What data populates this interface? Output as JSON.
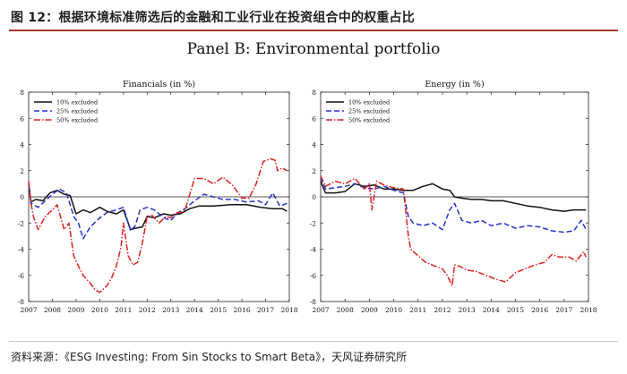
{
  "figure": {
    "title": "图 12：根据环境标准筛选后的金融和工业行业在投资组合中的权重占比",
    "panel_title": "Panel B: Environmental portfolio",
    "source": "资料来源：《ESG Investing: From Sin Stocks to Smart Beta》，天风证券研究所"
  },
  "colors": {
    "s10": "#111111",
    "s25": "#2233cc",
    "s50": "#dd2222",
    "accent": "#a63a2c"
  },
  "chart_data": [
    {
      "type": "line",
      "title": "Financials (in %)",
      "xlabel": "",
      "ylabel": "",
      "xlim": [
        2007,
        2018
      ],
      "ylim": [
        -8,
        8
      ],
      "xticks": [
        "2007",
        "2008",
        "2009",
        "2010",
        "2011",
        "2012",
        "2013",
        "2014",
        "2015",
        "2016",
        "2017",
        "2018"
      ],
      "yticks": [
        "-8",
        "-6",
        "-4",
        "-2",
        "0",
        "2",
        "4",
        "6",
        "8"
      ],
      "legend": "top-left",
      "series": [
        {
          "name": "10% excluded",
          "style": "solid",
          "x": [
            2007,
            2007.1,
            2007.3,
            2007.6,
            2007.9,
            2008.2,
            2008.5,
            2008.75,
            2009.0,
            2009.3,
            2009.6,
            2010.0,
            2010.3,
            2010.7,
            2011.0,
            2011.3,
            2011.5,
            2011.8,
            2012.0,
            2012.3,
            2012.7,
            2013.0,
            2013.4,
            2013.8,
            2014.2,
            2014.8,
            2015.5,
            2016.2,
            2016.8,
            2017.3,
            2017.7,
            2017.9
          ],
          "y": [
            1.0,
            -0.4,
            -0.2,
            -0.3,
            0.3,
            0.5,
            0.2,
            0.1,
            -1.3,
            -1.0,
            -1.2,
            -0.8,
            -1.1,
            -1.3,
            -1.0,
            -2.5,
            -2.4,
            -2.3,
            -1.5,
            -1.6,
            -1.3,
            -1.4,
            -1.3,
            -0.9,
            -0.7,
            -0.7,
            -0.6,
            -0.6,
            -0.8,
            -0.9,
            -0.9,
            -1.1
          ]
        },
        {
          "name": "25% excluded",
          "style": "dashed",
          "x": [
            2007,
            2007.1,
            2007.4,
            2007.7,
            2008.0,
            2008.3,
            2008.6,
            2008.9,
            2009.1,
            2009.3,
            2009.6,
            2010.0,
            2010.3,
            2010.7,
            2011.0,
            2011.3,
            2011.5,
            2011.7,
            2012.0,
            2012.3,
            2012.7,
            2013.0,
            2013.3,
            2013.6,
            2014.0,
            2014.4,
            2014.8,
            2015.2,
            2015.7,
            2016.2,
            2016.7,
            2017.0,
            2017.3,
            2017.6,
            2017.9
          ],
          "y": [
            1.0,
            -0.5,
            -0.8,
            -0.3,
            0.2,
            0.6,
            0.3,
            -1.5,
            -2.0,
            -3.2,
            -2.3,
            -1.6,
            -1.2,
            -1.0,
            -0.8,
            -2.6,
            -2.2,
            -1.0,
            -0.8,
            -1.0,
            -1.6,
            -1.8,
            -1.2,
            -0.9,
            -0.3,
            0.2,
            0.0,
            -0.2,
            -0.2,
            -0.4,
            -0.3,
            -0.6,
            0.3,
            -0.7,
            -0.5
          ]
        },
        {
          "name": "50% excluded",
          "style": "dashdot",
          "x": [
            2007,
            2007.1,
            2007.2,
            2007.4,
            2007.7,
            2008.0,
            2008.2,
            2008.5,
            2008.7,
            2008.9,
            2009.1,
            2009.3,
            2009.6,
            2009.8,
            2010.0,
            2010.3,
            2010.5,
            2010.7,
            2010.9,
            2011.0,
            2011.2,
            2011.4,
            2011.6,
            2011.8,
            2012.0,
            2012.2,
            2012.5,
            2012.8,
            2013.0,
            2013.2,
            2013.4,
            2013.6,
            2014.0,
            2014.4,
            2014.8,
            2015.2,
            2015.6,
            2016.0,
            2016.3,
            2016.6,
            2016.9,
            2017.2,
            2017.4,
            2017.5,
            2017.7,
            2017.9
          ],
          "y": [
            1.2,
            -0.5,
            -1.5,
            -2.5,
            -1.5,
            -1.0,
            -0.6,
            -2.5,
            -2.0,
            -4.5,
            -5.3,
            -6.0,
            -6.6,
            -7.1,
            -7.3,
            -6.8,
            -6.2,
            -5.3,
            -3.8,
            -2.0,
            -4.5,
            -5.2,
            -5.0,
            -3.5,
            -1.5,
            -1.4,
            -2.0,
            -1.5,
            -1.6,
            -1.2,
            -1.2,
            -1.0,
            1.4,
            1.4,
            1.0,
            1.5,
            0.9,
            -0.1,
            -0.1,
            1.0,
            2.7,
            2.9,
            2.8,
            2.0,
            2.2,
            2.0
          ]
        }
      ]
    },
    {
      "type": "line",
      "title": "Energy (in %)",
      "xlabel": "",
      "ylabel": "",
      "xlim": [
        2007,
        2018
      ],
      "ylim": [
        -8,
        8
      ],
      "xticks": [
        "2007",
        "2008",
        "2009",
        "2010",
        "2011",
        "2012",
        "2013",
        "2014",
        "2015",
        "2016",
        "2017",
        "2018"
      ],
      "yticks": [
        "-8",
        "-6",
        "-4",
        "-2",
        "0",
        "2",
        "4",
        "6",
        "8"
      ],
      "legend": "top-left",
      "series": [
        {
          "name": "10% excluded",
          "style": "solid",
          "x": [
            2007,
            2007.2,
            2007.6,
            2008.0,
            2008.4,
            2008.8,
            2009.2,
            2009.6,
            2010.0,
            2010.4,
            2010.8,
            2011.2,
            2011.6,
            2012.0,
            2012.3,
            2012.5,
            2012.8,
            2013.2,
            2013.6,
            2014.0,
            2014.5,
            2015.0,
            2015.5,
            2016.0,
            2016.5,
            2017.0,
            2017.4,
            2017.9
          ],
          "y": [
            1.2,
            0.3,
            0.3,
            0.4,
            1.0,
            0.8,
            0.9,
            0.6,
            0.6,
            0.5,
            0.5,
            0.8,
            1.0,
            0.6,
            0.5,
            0.0,
            -0.1,
            -0.2,
            -0.2,
            -0.3,
            -0.3,
            -0.5,
            -0.7,
            -0.8,
            -1.0,
            -1.1,
            -1.0,
            -1.0
          ]
        },
        {
          "name": "25% excluded",
          "style": "dashed",
          "x": [
            2007,
            2007.2,
            2007.6,
            2008.0,
            2008.4,
            2008.8,
            2009.2,
            2009.6,
            2010.0,
            2010.4,
            2010.6,
            2010.8,
            2011.2,
            2011.6,
            2012.0,
            2012.3,
            2012.5,
            2012.8,
            2013.2,
            2013.6,
            2014.0,
            2014.5,
            2015.0,
            2015.5,
            2016.0,
            2016.5,
            2017.0,
            2017.4,
            2017.7,
            2017.9
          ],
          "y": [
            1.5,
            0.6,
            0.7,
            0.8,
            1.0,
            0.7,
            0.6,
            0.8,
            0.5,
            0.3,
            -1.5,
            -2.0,
            -2.2,
            -2.0,
            -2.5,
            -1.0,
            -0.5,
            -1.8,
            -2.0,
            -1.8,
            -2.2,
            -2.0,
            -2.4,
            -2.2,
            -2.3,
            -2.6,
            -2.7,
            -2.6,
            -1.8,
            -2.5
          ]
        },
        {
          "name": "50% excluded",
          "style": "dashdot",
          "x": [
            2007,
            2007.2,
            2007.6,
            2008.0,
            2008.4,
            2008.8,
            2009.0,
            2009.1,
            2009.3,
            2009.6,
            2010.0,
            2010.4,
            2010.6,
            2010.7,
            2011.0,
            2011.3,
            2011.7,
            2012.0,
            2012.2,
            2012.4,
            2012.5,
            2012.7,
            2013.0,
            2013.4,
            2013.8,
            2014.2,
            2014.6,
            2015.0,
            2015.4,
            2015.8,
            2016.2,
            2016.5,
            2016.8,
            2017.2,
            2017.5,
            2017.8,
            2017.9
          ],
          "y": [
            1.6,
            0.8,
            1.2,
            1.0,
            1.4,
            0.6,
            1.0,
            -1.0,
            1.2,
            0.9,
            0.7,
            0.6,
            -3.0,
            -4.0,
            -4.5,
            -5.0,
            -5.3,
            -5.5,
            -6.0,
            -6.8,
            -5.2,
            -5.3,
            -5.6,
            -5.7,
            -6.0,
            -6.3,
            -6.5,
            -5.8,
            -5.5,
            -5.2,
            -5.0,
            -4.4,
            -4.6,
            -4.6,
            -4.9,
            -4.2,
            -4.6
          ]
        }
      ]
    }
  ]
}
